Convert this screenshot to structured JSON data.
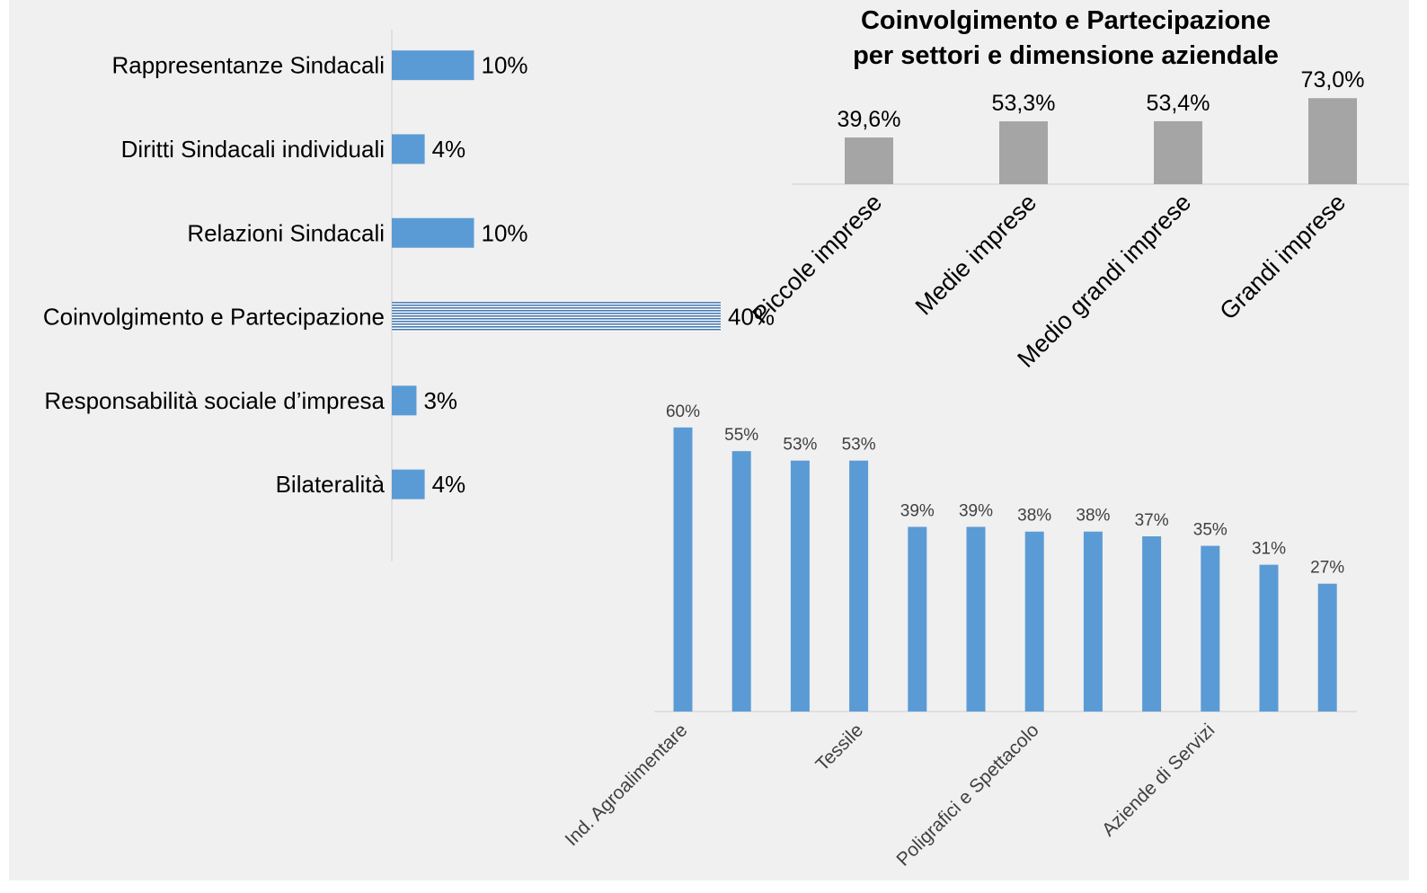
{
  "colors": {
    "background": "#f0f0f0",
    "bar_blue": "#5b9bd5",
    "bar_gray": "#a5a5a5",
    "axis": "#d9d9d9",
    "text": "#000000",
    "data_label_small": "#404040"
  },
  "chart_data": [
    {
      "type": "bar",
      "orientation": "horizontal",
      "categories": [
        "Rappresentanze Sindacali",
        "Diritti Sindacali individuali",
        "Relazioni Sindacali",
        "Coinvolgimento e Partecipazione",
        "Responsabilità sociale d’impresa",
        "Bilateralità"
      ],
      "values": [
        10,
        4,
        10,
        40,
        3,
        4
      ],
      "data_labels": [
        "10%",
        "4%",
        "10%",
        "40%",
        "3%",
        "4%"
      ],
      "highlight_index": 3,
      "xlim": [
        0,
        40
      ],
      "grid": false,
      "legend": "none"
    },
    {
      "type": "bar",
      "orientation": "vertical",
      "title": "Coinvolgimento e Partecipazione\nper settori e dimensione aziendale",
      "categories": [
        "Piccole imprese",
        "Medie imprese",
        "Medio grandi imprese",
        "Grandi imprese"
      ],
      "values": [
        39.6,
        53.3,
        53.4,
        73.0
      ],
      "data_labels": [
        "39,6%",
        "53,3%",
        "53,4%",
        "73,0%"
      ],
      "ylim": [
        0,
        75
      ],
      "grid": false,
      "legend": "none"
    },
    {
      "type": "bar",
      "orientation": "vertical",
      "categories": [
        "Ind. Agroalimentare",
        "",
        "",
        "Tessile",
        "",
        "",
        "Poligrafici e Spettacolo",
        "",
        "",
        "Aziende di Servizi",
        "",
        ""
      ],
      "values": [
        60,
        55,
        53,
        53,
        39,
        39,
        38,
        38,
        37,
        35,
        31,
        27
      ],
      "data_labels": [
        "60%",
        "55%",
        "53%",
        "53%",
        "39%",
        "39%",
        "38%",
        "38%",
        "37%",
        "35%",
        "31%",
        "27%"
      ],
      "ylim": [
        0,
        60
      ],
      "grid": false,
      "legend": "none"
    }
  ]
}
